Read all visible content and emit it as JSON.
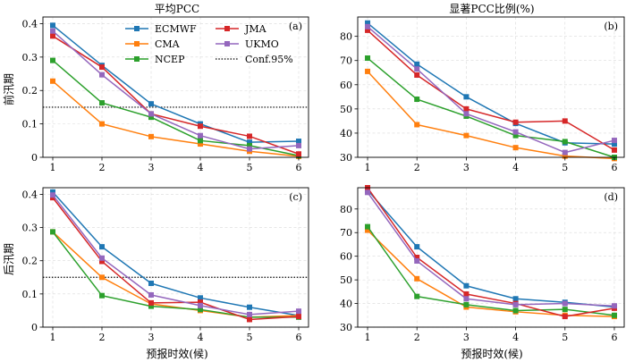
{
  "figure": {
    "col_titles": [
      "平均PCC",
      "显著PCC比例(%)"
    ],
    "row_labels": [
      "前汛期",
      "后汛期"
    ],
    "xlabel": "预报时效(候)"
  },
  "legend": {
    "entries": [
      {
        "name": "ECMWF",
        "color": "#1f77b4",
        "marker": "square",
        "style": "solid"
      },
      {
        "name": "JMA",
        "color": "#d62728",
        "marker": "square",
        "style": "solid"
      },
      {
        "name": "CMA",
        "color": "#ff7f0e",
        "marker": "square",
        "style": "solid"
      },
      {
        "name": "UKMO",
        "color": "#9467bd",
        "marker": "square",
        "style": "solid"
      },
      {
        "name": "NCEP",
        "color": "#2ca02c",
        "marker": "square",
        "style": "solid"
      },
      {
        "name": "Conf.95%",
        "color": "#000000",
        "marker": "none",
        "style": "dotted"
      }
    ]
  },
  "chart_data": [
    {
      "type": "line",
      "panel_label": "(a)",
      "x": [
        1,
        2,
        3,
        4,
        5,
        6
      ],
      "ylim": [
        0,
        0.42
      ],
      "yticks": [
        0,
        0.1,
        0.2,
        0.3,
        0.4
      ],
      "ytick_labels": [
        "0",
        "0.1",
        "0.2",
        "0.3",
        "0.4"
      ],
      "hline": 0.15,
      "series": [
        {
          "name": "ECMWF",
          "color": "#1f77b4",
          "values": [
            0.395,
            0.275,
            0.16,
            0.1,
            0.045,
            0.048
          ]
        },
        {
          "name": "CMA",
          "color": "#ff7f0e",
          "values": [
            0.228,
            0.1,
            0.062,
            0.04,
            0.018,
            0.003
          ]
        },
        {
          "name": "NCEP",
          "color": "#2ca02c",
          "values": [
            0.29,
            0.163,
            0.12,
            0.05,
            0.035,
            0.005
          ]
        },
        {
          "name": "JMA",
          "color": "#d62728",
          "values": [
            0.363,
            0.27,
            0.13,
            0.093,
            0.063,
            0.01
          ]
        },
        {
          "name": "UKMO",
          "color": "#9467bd",
          "values": [
            0.378,
            0.247,
            0.13,
            0.065,
            0.025,
            0.035
          ]
        }
      ]
    },
    {
      "type": "line",
      "panel_label": "(b)",
      "x": [
        1,
        2,
        3,
        4,
        5,
        6
      ],
      "ylim": [
        30,
        88
      ],
      "yticks": [
        30,
        40,
        50,
        60,
        70,
        80
      ],
      "ytick_labels": [
        "30",
        "40",
        "50",
        "60",
        "70",
        "80"
      ],
      "series": [
        {
          "name": "ECMWF",
          "color": "#1f77b4",
          "values": [
            85.5,
            68.5,
            55,
            44,
            36,
            35.5
          ]
        },
        {
          "name": "CMA",
          "color": "#ff7f0e",
          "values": [
            65.5,
            43.5,
            39,
            34,
            30.5,
            29.5
          ]
        },
        {
          "name": "NCEP",
          "color": "#2ca02c",
          "values": [
            71,
            54,
            47,
            39,
            36.5,
            30
          ]
        },
        {
          "name": "JMA",
          "color": "#d62728",
          "values": [
            82.5,
            64,
            50,
            44.5,
            45,
            33
          ]
        },
        {
          "name": "UKMO",
          "color": "#9467bd",
          "values": [
            84,
            66.5,
            48,
            40.5,
            32,
            37
          ]
        }
      ]
    },
    {
      "type": "line",
      "panel_label": "(c)",
      "x": [
        1,
        2,
        3,
        4,
        5,
        6
      ],
      "ylim": [
        0,
        0.42
      ],
      "yticks": [
        0,
        0.1,
        0.2,
        0.3,
        0.4
      ],
      "ytick_labels": [
        "0",
        "0.1",
        "0.2",
        "0.3",
        "0.4"
      ],
      "hline": 0.15,
      "series": [
        {
          "name": "ECMWF",
          "color": "#1f77b4",
          "values": [
            0.407,
            0.242,
            0.132,
            0.088,
            0.06,
            0.035
          ]
        },
        {
          "name": "CMA",
          "color": "#ff7f0e",
          "values": [
            0.287,
            0.15,
            0.07,
            0.05,
            0.03,
            0.035
          ]
        },
        {
          "name": "NCEP",
          "color": "#2ca02c",
          "values": [
            0.287,
            0.095,
            0.063,
            0.053,
            0.03,
            0.03
          ]
        },
        {
          "name": "JMA",
          "color": "#d62728",
          "values": [
            0.39,
            0.198,
            0.073,
            0.075,
            0.023,
            0.032
          ]
        },
        {
          "name": "UKMO",
          "color": "#9467bd",
          "values": [
            0.398,
            0.208,
            0.097,
            0.065,
            0.038,
            0.048
          ]
        }
      ]
    },
    {
      "type": "line",
      "panel_label": "(d)",
      "x": [
        1,
        2,
        3,
        4,
        5,
        6
      ],
      "ylim": [
        30,
        89
      ],
      "yticks": [
        30,
        40,
        50,
        60,
        70,
        80
      ],
      "ytick_labels": [
        "30",
        "40",
        "50",
        "60",
        "70",
        "80"
      ],
      "series": [
        {
          "name": "ECMWF",
          "color": "#1f77b4",
          "values": [
            88,
            64,
            47.5,
            42,
            40.5,
            38.5
          ]
        },
        {
          "name": "CMA",
          "color": "#ff7f0e",
          "values": [
            71,
            50.5,
            38.5,
            36.5,
            35,
            34.5
          ]
        },
        {
          "name": "NCEP",
          "color": "#2ca02c",
          "values": [
            72.5,
            43,
            39.5,
            37,
            37.5,
            35
          ]
        },
        {
          "name": "JMA",
          "color": "#d62728",
          "values": [
            89,
            59.5,
            44,
            40,
            34.5,
            38
          ]
        },
        {
          "name": "UKMO",
          "color": "#9467bd",
          "values": [
            87,
            58,
            42,
            39.5,
            40,
            39
          ]
        }
      ]
    }
  ]
}
